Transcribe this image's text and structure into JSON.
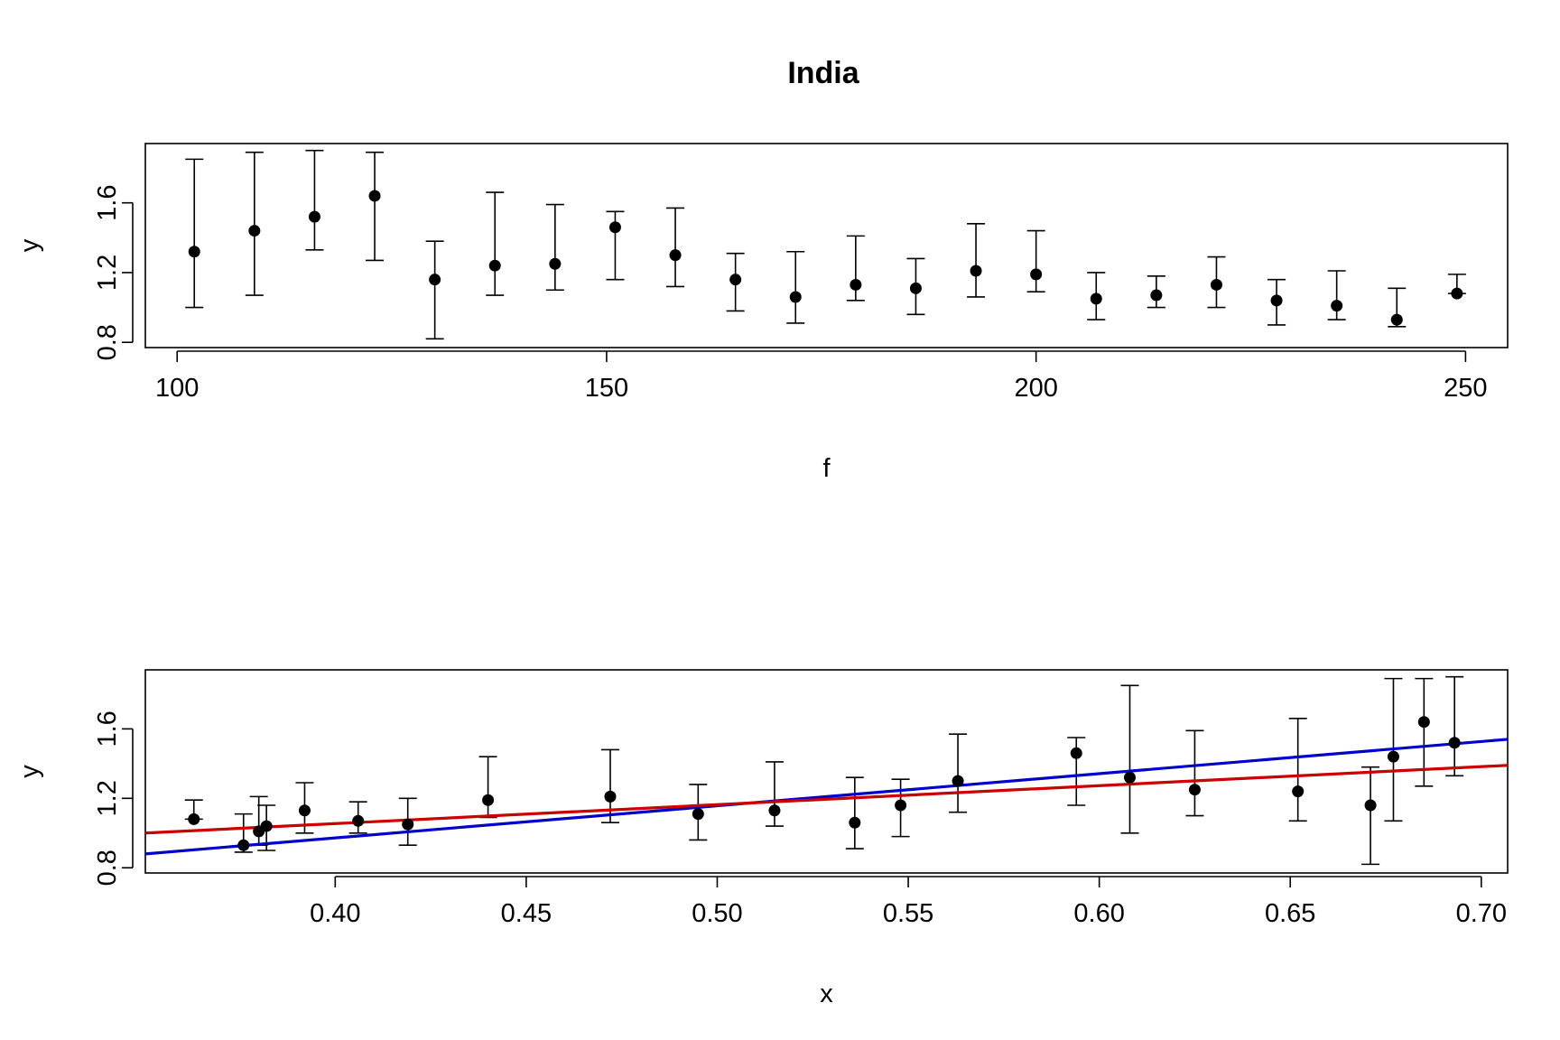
{
  "title": "India",
  "chart_data": [
    {
      "type": "scatter",
      "name": "top-panel",
      "xlabel": "f",
      "ylabel": "y",
      "xlim": [
        96.3,
        254.9
      ],
      "ylim": [
        0.77,
        1.94
      ],
      "xticks": [
        100,
        150,
        200,
        250
      ],
      "xtick_labels": [
        "100",
        "150",
        "200",
        "250"
      ],
      "yticks": [
        0.8,
        1.2,
        1.6
      ],
      "ytick_labels": [
        "0.8",
        "1.2",
        "1.6"
      ],
      "grid": false,
      "points": [
        {
          "x": 102,
          "y": 1.32,
          "lo": 1.0,
          "hi": 1.85
        },
        {
          "x": 109,
          "y": 1.44,
          "lo": 1.07,
          "hi": 1.89
        },
        {
          "x": 116,
          "y": 1.52,
          "lo": 1.33,
          "hi": 1.9
        },
        {
          "x": 123,
          "y": 1.64,
          "lo": 1.27,
          "hi": 1.89
        },
        {
          "x": 130,
          "y": 1.16,
          "lo": 0.82,
          "hi": 1.38
        },
        {
          "x": 137,
          "y": 1.24,
          "lo": 1.07,
          "hi": 1.66
        },
        {
          "x": 144,
          "y": 1.25,
          "lo": 1.1,
          "hi": 1.59
        },
        {
          "x": 151,
          "y": 1.46,
          "lo": 1.16,
          "hi": 1.55
        },
        {
          "x": 158,
          "y": 1.3,
          "lo": 1.12,
          "hi": 1.57
        },
        {
          "x": 165,
          "y": 1.16,
          "lo": 0.98,
          "hi": 1.31
        },
        {
          "x": 172,
          "y": 1.06,
          "lo": 0.91,
          "hi": 1.32
        },
        {
          "x": 179,
          "y": 1.13,
          "lo": 1.04,
          "hi": 1.41
        },
        {
          "x": 186,
          "y": 1.11,
          "lo": 0.96,
          "hi": 1.28
        },
        {
          "x": 193,
          "y": 1.21,
          "lo": 1.06,
          "hi": 1.48
        },
        {
          "x": 200,
          "y": 1.19,
          "lo": 1.09,
          "hi": 1.44
        },
        {
          "x": 207,
          "y": 1.05,
          "lo": 0.93,
          "hi": 1.2
        },
        {
          "x": 214,
          "y": 1.07,
          "lo": 1.0,
          "hi": 1.18
        },
        {
          "x": 221,
          "y": 1.13,
          "lo": 1.0,
          "hi": 1.29
        },
        {
          "x": 228,
          "y": 1.04,
          "lo": 0.9,
          "hi": 1.16
        },
        {
          "x": 235,
          "y": 1.01,
          "lo": 0.93,
          "hi": 1.21
        },
        {
          "x": 242,
          "y": 0.93,
          "lo": 0.89,
          "hi": 1.11
        },
        {
          "x": 249,
          "y": 1.08,
          "lo": 1.08,
          "hi": 1.19
        }
      ]
    },
    {
      "type": "scatter",
      "name": "bottom-panel",
      "xlabel": "x",
      "ylabel": "y",
      "xlim": [
        0.3503,
        0.7069
      ],
      "ylim": [
        0.77,
        1.94
      ],
      "xticks": [
        0.4,
        0.45,
        0.5,
        0.55,
        0.6,
        0.65,
        0.7
      ],
      "xtick_labels": [
        "0.40",
        "0.45",
        "0.50",
        "0.55",
        "0.60",
        "0.65",
        "0.70"
      ],
      "yticks": [
        0.8,
        1.2,
        1.6
      ],
      "ytick_labels": [
        "0.8",
        "1.2",
        "1.6"
      ],
      "grid": false,
      "points": [
        {
          "x": 0.363,
          "y": 1.08,
          "lo": 1.08,
          "hi": 1.19
        },
        {
          "x": 0.376,
          "y": 0.93,
          "lo": 0.89,
          "hi": 1.11
        },
        {
          "x": 0.38,
          "y": 1.01,
          "lo": 0.93,
          "hi": 1.21
        },
        {
          "x": 0.382,
          "y": 1.04,
          "lo": 0.9,
          "hi": 1.16
        },
        {
          "x": 0.392,
          "y": 1.13,
          "lo": 1.0,
          "hi": 1.29
        },
        {
          "x": 0.406,
          "y": 1.07,
          "lo": 1.0,
          "hi": 1.18
        },
        {
          "x": 0.419,
          "y": 1.05,
          "lo": 0.93,
          "hi": 1.2
        },
        {
          "x": 0.44,
          "y": 1.19,
          "lo": 1.09,
          "hi": 1.44
        },
        {
          "x": 0.472,
          "y": 1.21,
          "lo": 1.06,
          "hi": 1.48
        },
        {
          "x": 0.495,
          "y": 1.11,
          "lo": 0.96,
          "hi": 1.28
        },
        {
          "x": 0.515,
          "y": 1.13,
          "lo": 1.04,
          "hi": 1.41
        },
        {
          "x": 0.536,
          "y": 1.06,
          "lo": 0.91,
          "hi": 1.32
        },
        {
          "x": 0.548,
          "y": 1.16,
          "lo": 0.98,
          "hi": 1.31
        },
        {
          "x": 0.563,
          "y": 1.3,
          "lo": 1.12,
          "hi": 1.57
        },
        {
          "x": 0.594,
          "y": 1.46,
          "lo": 1.16,
          "hi": 1.55
        },
        {
          "x": 0.608,
          "y": 1.32,
          "lo": 1.0,
          "hi": 1.85
        },
        {
          "x": 0.625,
          "y": 1.25,
          "lo": 1.1,
          "hi": 1.59
        },
        {
          "x": 0.652,
          "y": 1.24,
          "lo": 1.07,
          "hi": 1.66
        },
        {
          "x": 0.671,
          "y": 1.16,
          "lo": 0.82,
          "hi": 1.38
        },
        {
          "x": 0.677,
          "y": 1.44,
          "lo": 1.07,
          "hi": 1.89
        },
        {
          "x": 0.685,
          "y": 1.64,
          "lo": 1.27,
          "hi": 1.89
        },
        {
          "x": 0.693,
          "y": 1.52,
          "lo": 1.33,
          "hi": 1.9
        }
      ],
      "lines": [
        {
          "color": "#0000cc",
          "x": [
            0.3503,
            0.7069
          ],
          "y": [
            0.88,
            1.54
          ]
        },
        {
          "color": "#cc0000",
          "x": [
            0.3503,
            0.7069
          ],
          "y": [
            1.0,
            1.39
          ]
        }
      ]
    }
  ]
}
